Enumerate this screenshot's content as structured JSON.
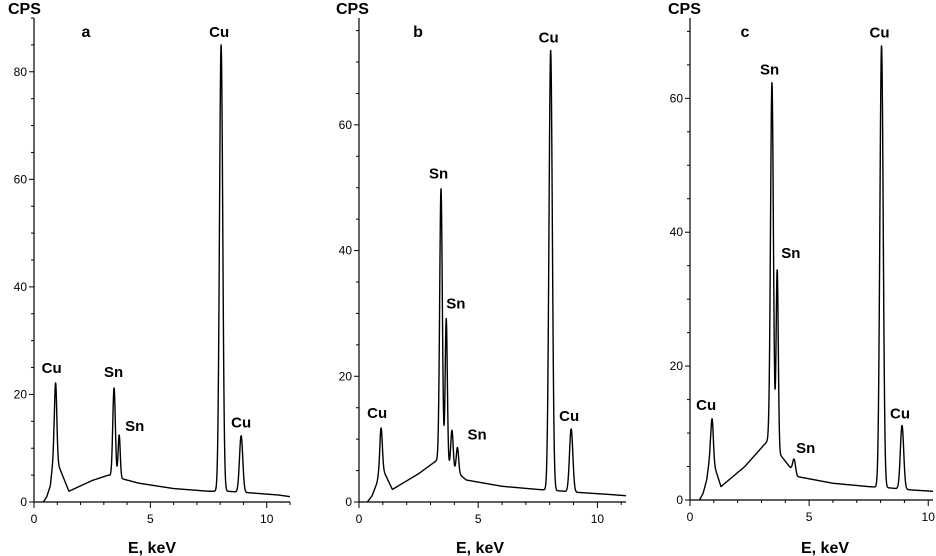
{
  "chart_data": [
    {
      "type": "line",
      "panel_label": "a",
      "ylabel": "CPS",
      "xlabel": "E, keV",
      "xlim": [
        0,
        11
      ],
      "ylim": [
        0,
        90
      ],
      "x_ticks": [
        0,
        5,
        10
      ],
      "y_ticks": [
        0,
        20,
        40,
        60,
        80
      ],
      "grid": false,
      "baseline": [
        [
          0.4,
          0
        ],
        [
          0.55,
          1
        ],
        [
          0.7,
          3
        ],
        [
          0.85,
          9
        ],
        [
          1.5,
          2
        ],
        [
          2.5,
          4
        ],
        [
          3.2,
          5
        ],
        [
          4.5,
          3.5
        ],
        [
          6,
          2.5
        ],
        [
          7.5,
          2
        ],
        [
          8.3,
          2
        ],
        [
          9.3,
          1.7
        ],
        [
          10.5,
          1.3
        ],
        [
          11,
          1
        ]
      ],
      "peaks": [
        {
          "x": 0.93,
          "y": 14,
          "w": 0.05,
          "label": "Cu"
        },
        {
          "x": 3.44,
          "y": 16.5,
          "w": 0.055,
          "label": "Sn"
        },
        {
          "x": 3.66,
          "y": 8,
          "w": 0.045,
          "label": "Sn"
        },
        {
          "x": 8.04,
          "y": 83,
          "w": 0.07,
          "label": "Cu"
        },
        {
          "x": 8.9,
          "y": 10.5,
          "w": 0.07,
          "label": "Cu"
        }
      ]
    },
    {
      "type": "line",
      "panel_label": "b",
      "ylabel": "CPS",
      "xlabel": "E, keV",
      "xlim": [
        0,
        11.2
      ],
      "ylim": [
        0,
        77
      ],
      "x_ticks": [
        0,
        5,
        10
      ],
      "y_ticks": [
        0,
        20,
        40,
        60
      ],
      "grid": false,
      "baseline": [
        [
          0.35,
          0
        ],
        [
          0.55,
          1
        ],
        [
          0.75,
          3
        ],
        [
          0.9,
          6
        ],
        [
          1.4,
          2
        ],
        [
          2.5,
          4.5
        ],
        [
          3.4,
          7
        ],
        [
          4.5,
          3.5
        ],
        [
          6,
          2.5
        ],
        [
          7.5,
          2
        ],
        [
          8.3,
          1.8
        ],
        [
          9.3,
          1.5
        ],
        [
          10.5,
          1.2
        ],
        [
          11.2,
          1
        ]
      ],
      "peaks": [
        {
          "x": 0.93,
          "y": 6,
          "w": 0.05,
          "label": "Cu"
        },
        {
          "x": 3.44,
          "y": 43,
          "w": 0.055,
          "label": "Sn"
        },
        {
          "x": 3.66,
          "y": 23,
          "w": 0.045,
          "label": "Sn"
        },
        {
          "x": 3.9,
          "y": 6,
          "w": 0.05,
          "label": ""
        },
        {
          "x": 4.13,
          "y": 4,
          "w": 0.05,
          "label": "Sn"
        },
        {
          "x": 8.04,
          "y": 70,
          "w": 0.07,
          "label": "Cu"
        },
        {
          "x": 8.9,
          "y": 10,
          "w": 0.07,
          "label": "Cu"
        }
      ]
    },
    {
      "type": "line",
      "panel_label": "c",
      "ylabel": "CPS",
      "xlabel": "E, keV",
      "xlim": [
        0,
        10.2
      ],
      "ylim": [
        0,
        72
      ],
      "x_ticks": [
        0,
        5,
        10
      ],
      "y_ticks": [
        0,
        20,
        40,
        60
      ],
      "grid": false,
      "baseline": [
        [
          0.4,
          0
        ],
        [
          0.55,
          1
        ],
        [
          0.7,
          3
        ],
        [
          0.85,
          7
        ],
        [
          1.3,
          2
        ],
        [
          2.3,
          5
        ],
        [
          3.3,
          9
        ],
        [
          4.5,
          3.5
        ],
        [
          6,
          2.5
        ],
        [
          7.5,
          2
        ],
        [
          8.4,
          1.8
        ],
        [
          9.3,
          1.5
        ],
        [
          10.2,
          1.3
        ]
      ],
      "peaks": [
        {
          "x": 0.93,
          "y": 6,
          "w": 0.05,
          "label": "Cu"
        },
        {
          "x": 3.44,
          "y": 54,
          "w": 0.06,
          "label": "Sn"
        },
        {
          "x": 3.66,
          "y": 27,
          "w": 0.045,
          "label": "Sn"
        },
        {
          "x": 4.37,
          "y": 2,
          "w": 0.06,
          "label": "Sn"
        },
        {
          "x": 8.04,
          "y": 66,
          "w": 0.07,
          "label": "Cu"
        },
        {
          "x": 8.9,
          "y": 9.5,
          "w": 0.07,
          "label": "Cu"
        }
      ]
    }
  ]
}
